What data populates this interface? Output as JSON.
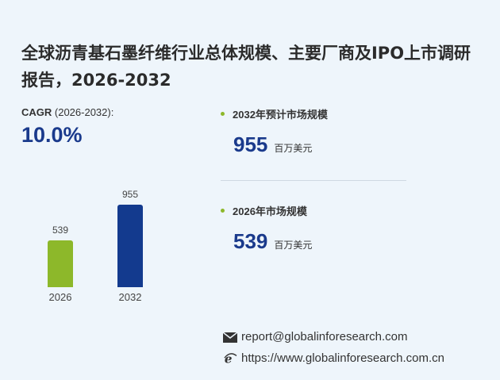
{
  "title": "全球沥青基石墨纤维行业总体规模、主要厂商及IPO上市调研报告，2026-2032",
  "cagr": {
    "label_bold": "CAGR",
    "label_rest": " (2026-2032):",
    "value": "10.0%"
  },
  "chart_data": {
    "type": "bar",
    "categories": [
      "2026",
      "2032"
    ],
    "values": [
      539,
      955
    ],
    "colors": [
      "#8db82a",
      "#133a8e"
    ]
  },
  "stats": [
    {
      "label": "2032年预计市场规模",
      "value": "955",
      "unit": "百万美元"
    },
    {
      "label": "2026年市场规模",
      "value": "539",
      "unit": "百万美元"
    }
  ],
  "contact": {
    "email": "report@globalinforesearch.com",
    "website": "https://www.globalinforesearch.com.cn"
  }
}
